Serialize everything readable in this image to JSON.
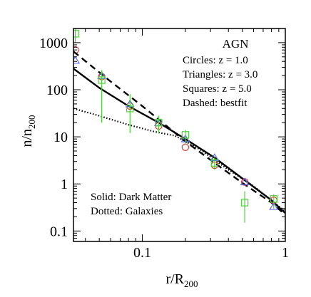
{
  "chart_data": {
    "type": "scatter",
    "title": "AGN",
    "xlabel": {
      "main": "r/R",
      "sub": "200"
    },
    "ylabel": {
      "main": "n/n",
      "sub": "200"
    },
    "xscale": "log",
    "yscale": "log",
    "xlim": [
      0.033,
      1.0
    ],
    "ylim": [
      0.06,
      2000
    ],
    "grid": false,
    "x_ticks": [
      {
        "value": 0.1,
        "label": "0.1"
      },
      {
        "value": 1,
        "label": "1"
      }
    ],
    "y_ticks": [
      {
        "value": 0.1,
        "label": "0.1"
      },
      {
        "value": 1,
        "label": "1"
      },
      {
        "value": 10,
        "label": "10"
      },
      {
        "value": 100,
        "label": "100"
      },
      {
        "value": 1000,
        "label": "1000"
      }
    ],
    "legend_lines": [
      "Circles: z = 1.0",
      "Triangles: z = 3.0",
      "Squares: z = 5.0",
      "Dashed: bestfit"
    ],
    "annotation_lines": [
      "Solid: Dark Matter",
      "Dotted: Galaxies"
    ],
    "colors": {
      "circles": "#e8312f",
      "triangles": "#5b6ee8",
      "squares": "#4dd13a",
      "lines": "#000000"
    },
    "series": [
      {
        "marker": "circle",
        "points": [
          {
            "x": 0.034,
            "y": 700
          },
          {
            "x": 0.052,
            "y": 190
          },
          {
            "x": 0.082,
            "y": 45
          },
          {
            "x": 0.13,
            "y": 17
          },
          {
            "x": 0.2,
            "y": 6
          },
          {
            "x": 0.32,
            "y": 2.5
          },
          {
            "x": 0.52,
            "y": 1.1
          },
          {
            "x": 0.83,
            "y": 0.45
          }
        ]
      },
      {
        "marker": "triangle",
        "points": [
          {
            "x": 0.034,
            "y": 420
          },
          {
            "x": 0.052,
            "y": 200
          },
          {
            "x": 0.082,
            "y": 50
          },
          {
            "x": 0.13,
            "y": 20
          },
          {
            "x": 0.2,
            "y": 9
          },
          {
            "x": 0.32,
            "y": 3.6
          },
          {
            "x": 0.52,
            "y": 1.1
          },
          {
            "x": 0.83,
            "y": 0.33
          }
        ]
      },
      {
        "marker": "square",
        "points": [
          {
            "x": 0.034,
            "y": 1550,
            "err_low": 1000,
            "err_high": 2100
          },
          {
            "x": 0.052,
            "y": 160,
            "err_low": 20,
            "err_high": 260
          },
          {
            "x": 0.082,
            "y": 40,
            "err_low": 12,
            "err_high": 80
          },
          {
            "x": 0.13,
            "y": 20,
            "err_low": 12,
            "err_high": 28
          },
          {
            "x": 0.2,
            "y": 11,
            "err_low": 7,
            "err_high": 14
          },
          {
            "x": 0.32,
            "y": 2.8,
            "err_low": 2.0,
            "err_high": 3.6
          },
          {
            "x": 0.52,
            "y": 0.4,
            "err_low": 0.15,
            "err_high": 0.7
          },
          {
            "x": 0.83,
            "y": 0.48,
            "err_low": 0.3,
            "err_high": 0.6
          }
        ]
      }
    ],
    "lines": [
      {
        "style": "solid",
        "points": [
          {
            "x": 0.033,
            "y": 280
          },
          {
            "x": 0.05,
            "y": 110
          },
          {
            "x": 0.08,
            "y": 45
          },
          {
            "x": 0.13,
            "y": 20
          },
          {
            "x": 0.2,
            "y": 9
          },
          {
            "x": 0.32,
            "y": 3.6
          },
          {
            "x": 0.52,
            "y": 1.2
          },
          {
            "x": 0.8,
            "y": 0.45
          },
          {
            "x": 1.0,
            "y": 0.24
          }
        ]
      },
      {
        "style": "dashed",
        "points": [
          {
            "x": 0.033,
            "y": 650
          },
          {
            "x": 0.06,
            "y": 150
          },
          {
            "x": 0.1,
            "y": 45
          },
          {
            "x": 0.2,
            "y": 8
          },
          {
            "x": 0.32,
            "y": 2.8
          },
          {
            "x": 0.5,
            "y": 1.05
          },
          {
            "x": 0.8,
            "y": 0.4
          },
          {
            "x": 1.0,
            "y": 0.22
          }
        ]
      },
      {
        "style": "dotted",
        "points": [
          {
            "x": 0.033,
            "y": 40
          },
          {
            "x": 0.05,
            "y": 28
          },
          {
            "x": 0.08,
            "y": 18
          },
          {
            "x": 0.12,
            "y": 13
          },
          {
            "x": 0.17,
            "y": 10.5
          },
          {
            "x": 0.25,
            "y": 5.5
          },
          {
            "x": 0.4,
            "y": 2
          },
          {
            "x": 0.6,
            "y": 0.9
          },
          {
            "x": 1.0,
            "y": 0.26
          }
        ]
      }
    ]
  }
}
